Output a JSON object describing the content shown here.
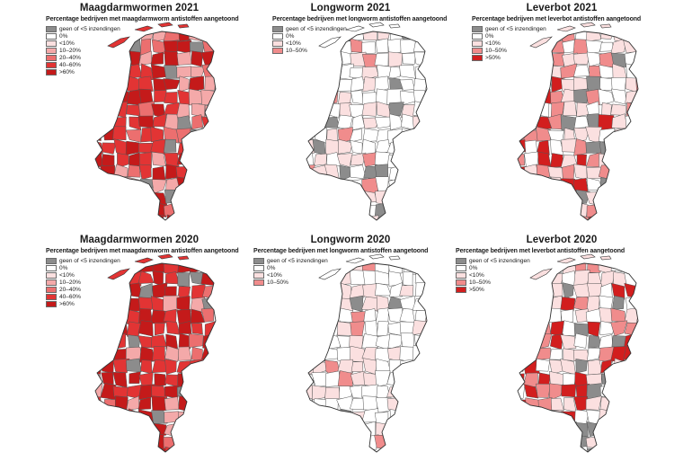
{
  "panels": [
    {
      "title": "Maagdarmwormen 2021",
      "legend_title": "Percentage bedrijven met maagdarmworm antistoffen aangetoond",
      "legend": [
        {
          "label": "geen of <5 inzendingen",
          "color": "#8c8c8c"
        },
        {
          "label": "0%",
          "color": "#ffffff"
        },
        {
          "label": "<10%",
          "color": "#fbe0e0"
        },
        {
          "label": "10–20%",
          "color": "#f4a9a9"
        },
        {
          "label": "20–40%",
          "color": "#ec6f6f"
        },
        {
          "label": "40–60%",
          "color": "#e23434"
        },
        {
          "label": ">60%",
          "color": "#c41a1a"
        }
      ],
      "intensity": "high"
    },
    {
      "title": "Longworm 2021",
      "legend_title": "Percentage bedrijven met longworm antistoffen aangetoond",
      "legend": [
        {
          "label": "geen of <5 inzendingen",
          "color": "#8c8c8c"
        },
        {
          "label": "0%",
          "color": "#ffffff"
        },
        {
          "label": "<10%",
          "color": "#fbe0e0"
        },
        {
          "label": "10–50%",
          "color": "#f08c8c"
        }
      ],
      "intensity": "low"
    },
    {
      "title": "Leverbot 2021",
      "legend_title": "Percentage bedrijven met leverbot antistoffen aangetoond",
      "legend": [
        {
          "label": "geen of <5 inzendingen",
          "color": "#8c8c8c"
        },
        {
          "label": "0%",
          "color": "#ffffff"
        },
        {
          "label": "<10%",
          "color": "#fbe0e0"
        },
        {
          "label": "10–50%",
          "color": "#f08c8c"
        },
        {
          "label": ">50%",
          "color": "#d21e1e"
        }
      ],
      "intensity": "medium"
    },
    {
      "title": "Maagdarmwormen 2020",
      "legend_title": "Percentage bedrijven met maagdarmworm antistoffen aangetoond",
      "legend": [
        {
          "label": "geen of <5 inzendingen",
          "color": "#8c8c8c"
        },
        {
          "label": "0%",
          "color": "#ffffff"
        },
        {
          "label": "<10%",
          "color": "#fbe0e0"
        },
        {
          "label": "10–20%",
          "color": "#f4a9a9"
        },
        {
          "label": "20–40%",
          "color": "#ec6f6f"
        },
        {
          "label": "40–60%",
          "color": "#e23434"
        },
        {
          "label": ">60%",
          "color": "#c41a1a"
        }
      ],
      "intensity": "high"
    },
    {
      "title": "Longworm 2020",
      "legend_title": "Percentage bedrijven met longworm antistoffen aangetoond",
      "legend": [
        {
          "label": "geen of <5 inzendingen",
          "color": "#8c8c8c"
        },
        {
          "label": "0%",
          "color": "#ffffff"
        },
        {
          "label": "<10%",
          "color": "#fbe0e0"
        },
        {
          "label": "10–50%",
          "color": "#f08c8c"
        }
      ],
      "intensity": "low"
    },
    {
      "title": "Leverbot 2020",
      "legend_title": "Percentage bedrijven met leverbot antistoffen aangetoond",
      "legend": [
        {
          "label": "geen of <5 inzendingen",
          "color": "#8c8c8c"
        },
        {
          "label": "0%",
          "color": "#ffffff"
        },
        {
          "label": "<10%",
          "color": "#fbe0e0"
        },
        {
          "label": "10–50%",
          "color": "#f08c8c"
        },
        {
          "label": ">50%",
          "color": "#d21e1e"
        }
      ],
      "intensity": "medium"
    }
  ],
  "colors": {
    "border": "#555555",
    "outline": "#333333"
  }
}
